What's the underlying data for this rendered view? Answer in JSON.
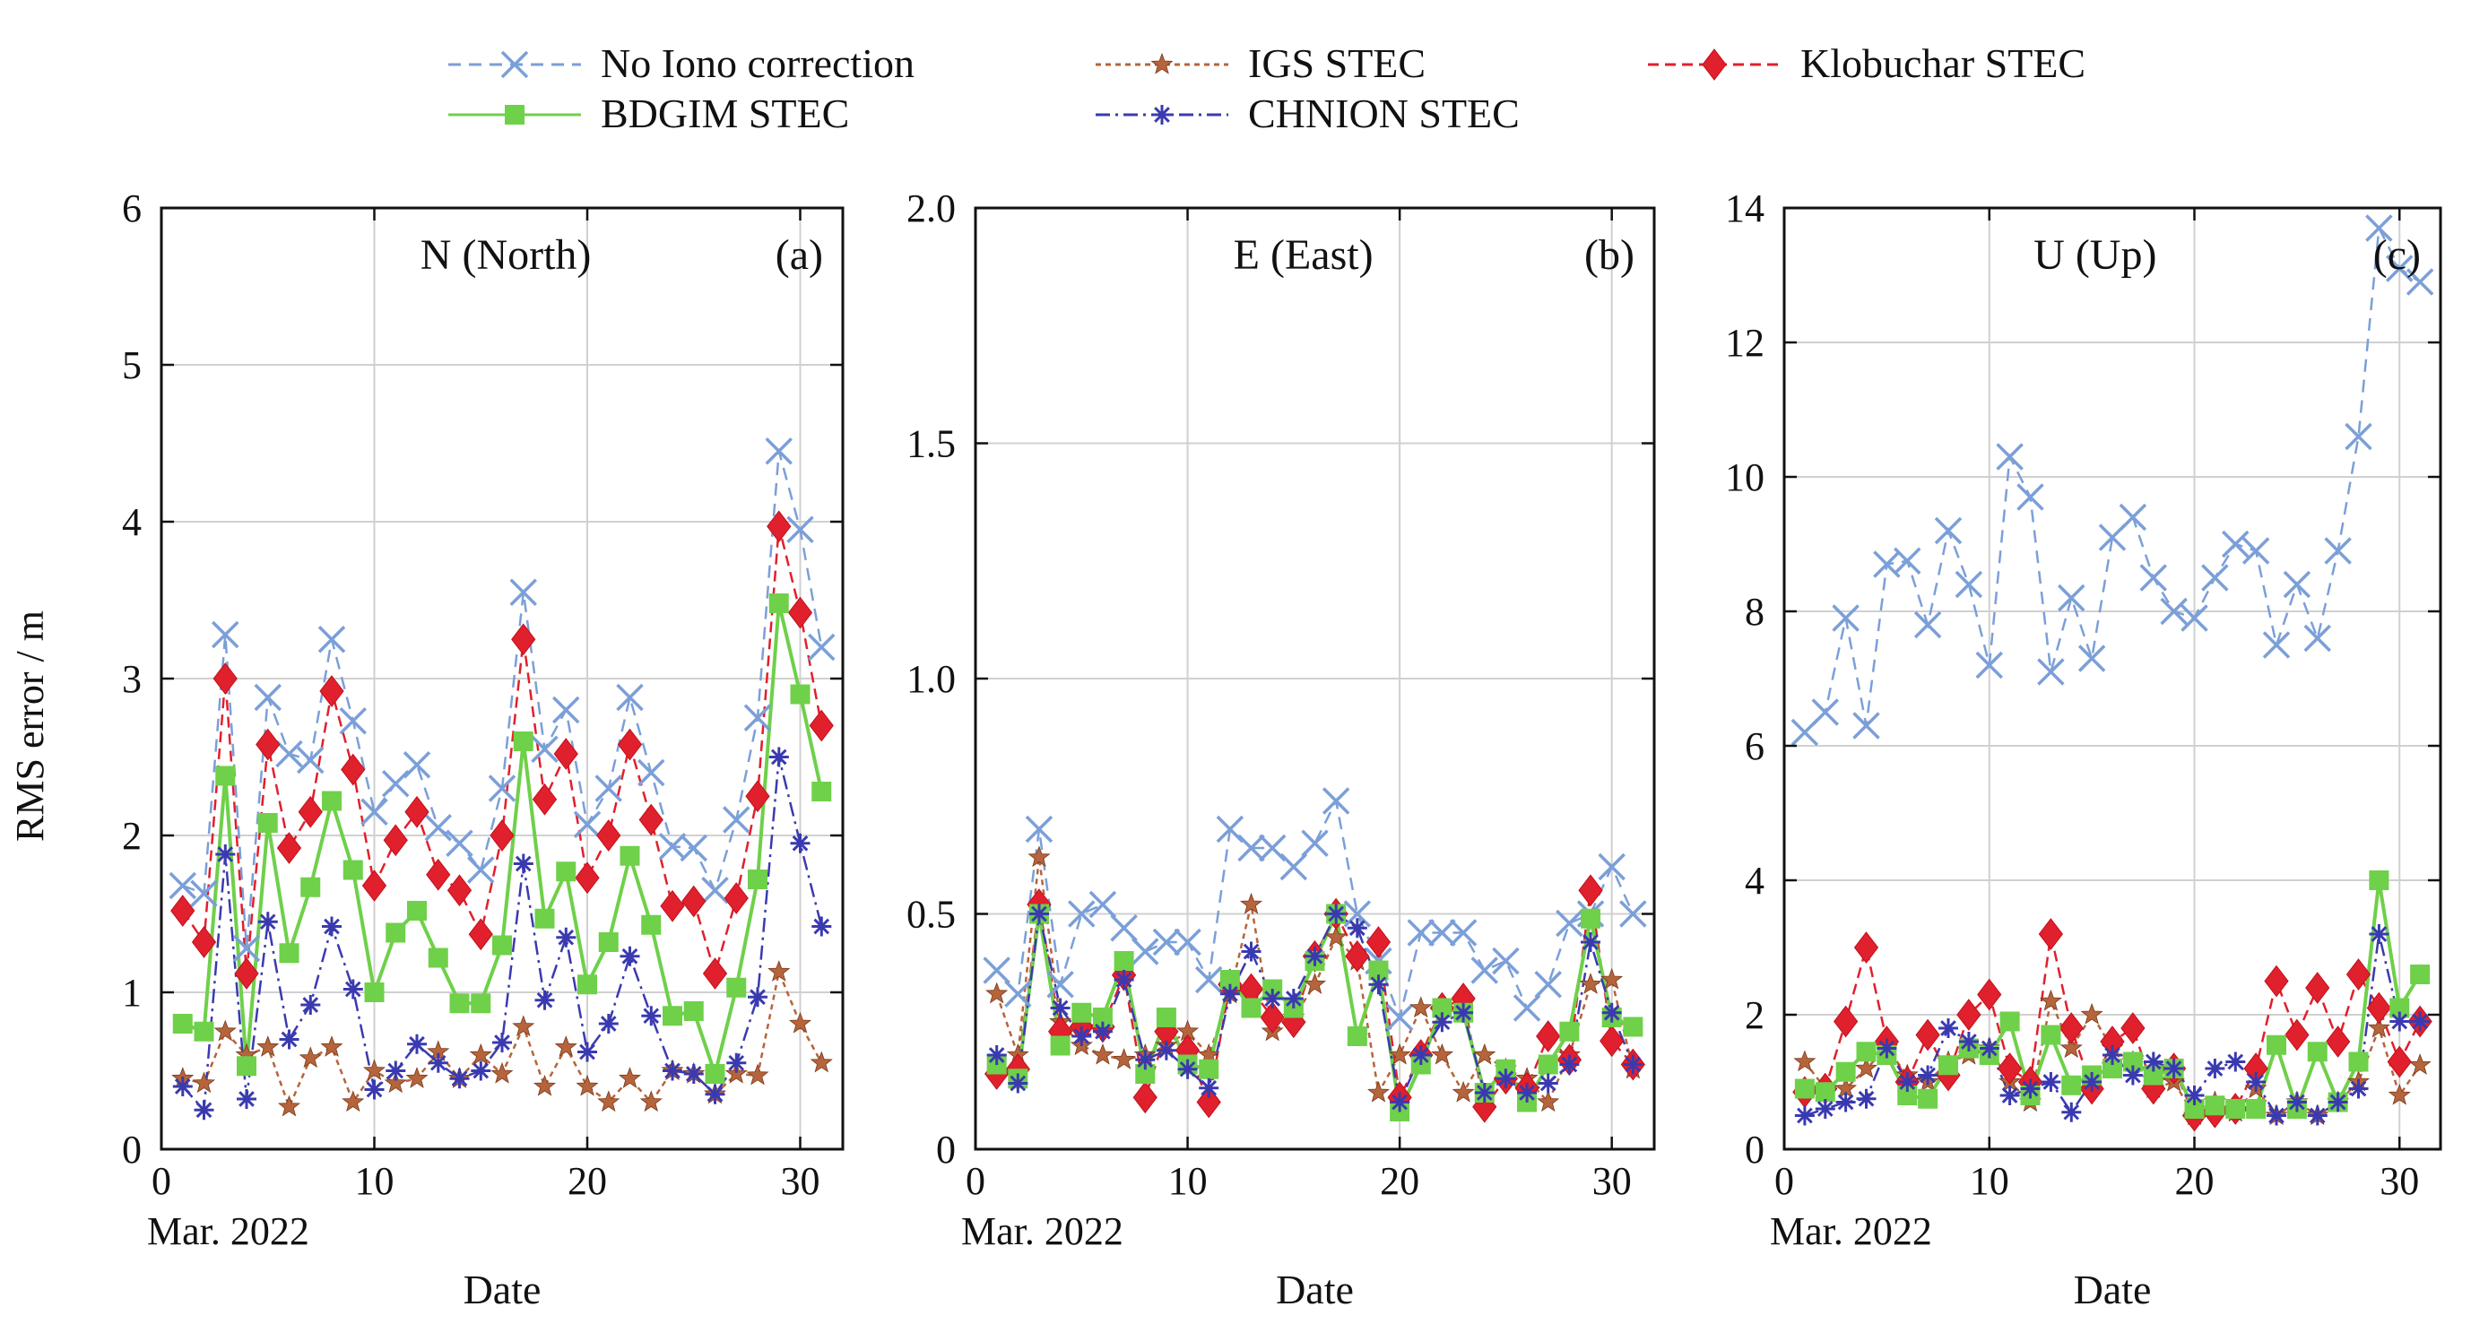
{
  "legend": {
    "items": [
      {
        "key": "noiono",
        "label": "No Iono correction"
      },
      {
        "key": "igs",
        "label": "IGS STEC"
      },
      {
        "key": "klob",
        "label": "Klobuchar STEC"
      },
      {
        "key": "bdgim",
        "label": "BDGIM STEC"
      },
      {
        "key": "chnion",
        "label": "CHNION STEC"
      }
    ]
  },
  "styles": {
    "noiono": {
      "color": "#7b9fd8",
      "marker": "x",
      "dash": "14 9"
    },
    "igs": {
      "color": "#b5643c",
      "marker": "star",
      "dash": "6 5"
    },
    "klob": {
      "color": "#e0202c",
      "marker": "diamond",
      "dash": "12 7"
    },
    "bdgim": {
      "color": "#6fd04a",
      "marker": "square",
      "dash": ""
    },
    "chnion": {
      "color": "#3a3ab0",
      "marker": "asterisk",
      "dash": "16 6 3 6"
    }
  },
  "ylabel": "RMS error / m",
  "chart_data": [
    {
      "type": "line",
      "panel_title": "N (North)",
      "panel_tag": "(a)",
      "xlabel": "Date",
      "x_sublabel": "Mar. 2022",
      "xlim": [
        0,
        32
      ],
      "ylim": [
        0,
        6
      ],
      "xticks": [
        0,
        10,
        20,
        30
      ],
      "yticks": [
        0,
        1,
        2,
        3,
        4,
        5,
        6
      ],
      "ytick_labels": [
        "0",
        "1",
        "2",
        "3",
        "4",
        "5",
        "6"
      ],
      "grid": true,
      "x": [
        1,
        2,
        3,
        4,
        5,
        6,
        7,
        8,
        9,
        10,
        11,
        12,
        13,
        14,
        15,
        16,
        17,
        18,
        19,
        20,
        21,
        22,
        23,
        24,
        25,
        26,
        27,
        28,
        29,
        30,
        31
      ],
      "series": [
        {
          "key": "noiono",
          "name": "No Iono correction",
          "values": [
            1.68,
            1.63,
            3.28,
            1.28,
            2.88,
            2.52,
            2.48,
            3.25,
            2.73,
            2.15,
            2.33,
            2.45,
            2.05,
            1.95,
            1.78,
            2.3,
            3.55,
            2.55,
            2.8,
            2.07,
            2.3,
            2.88,
            2.4,
            1.93,
            1.92,
            1.65,
            2.1,
            2.75,
            4.45,
            3.95,
            3.2
          ]
        },
        {
          "key": "igs",
          "name": "IGS STEC",
          "values": [
            0.45,
            0.42,
            0.75,
            0.6,
            0.65,
            0.27,
            0.58,
            0.65,
            0.3,
            0.5,
            0.42,
            0.45,
            0.62,
            0.45,
            0.6,
            0.48,
            0.78,
            0.4,
            0.65,
            0.4,
            0.3,
            0.45,
            0.3,
            0.5,
            0.48,
            0.35,
            0.48,
            0.47,
            1.13,
            0.8,
            0.55
          ]
        },
        {
          "key": "klob",
          "name": "Klobuchar STEC",
          "values": [
            1.52,
            1.32,
            3.0,
            1.12,
            2.58,
            1.92,
            2.15,
            2.92,
            2.42,
            1.68,
            1.97,
            2.15,
            1.75,
            1.65,
            1.37,
            2.0,
            3.25,
            2.23,
            2.52,
            1.73,
            2.0,
            2.58,
            2.1,
            1.55,
            1.58,
            1.12,
            1.6,
            2.25,
            3.97,
            3.42,
            2.7
          ]
        },
        {
          "key": "bdgim",
          "name": "BDGIM STEC",
          "values": [
            0.8,
            0.75,
            2.38,
            0.53,
            2.08,
            1.25,
            1.67,
            2.22,
            1.78,
            1.0,
            1.38,
            1.52,
            1.22,
            0.93,
            0.93,
            1.3,
            2.6,
            1.47,
            1.77,
            1.05,
            1.32,
            1.87,
            1.43,
            0.85,
            0.88,
            0.48,
            1.03,
            1.72,
            3.48,
            2.9,
            2.28
          ]
        },
        {
          "key": "chnion",
          "name": "CHNION STEC",
          "values": [
            0.4,
            0.25,
            1.88,
            0.32,
            1.45,
            0.7,
            0.92,
            1.42,
            1.02,
            0.38,
            0.5,
            0.67,
            0.55,
            0.45,
            0.5,
            0.68,
            1.82,
            0.95,
            1.35,
            0.62,
            0.8,
            1.23,
            0.85,
            0.5,
            0.48,
            0.35,
            0.55,
            0.97,
            2.5,
            1.95,
            1.42
          ]
        }
      ]
    },
    {
      "type": "line",
      "panel_title": "E (East)",
      "panel_tag": "(b)",
      "xlabel": "Date",
      "x_sublabel": "Mar. 2022",
      "xlim": [
        0,
        32
      ],
      "ylim": [
        0,
        2
      ],
      "xticks": [
        0,
        10,
        20,
        30
      ],
      "yticks": [
        0,
        0.5,
        1.0,
        1.5,
        2.0
      ],
      "ytick_labels": [
        "0",
        "0.5",
        "1.0",
        "1.5",
        "2.0"
      ],
      "grid": true,
      "x": [
        1,
        2,
        3,
        4,
        5,
        6,
        7,
        8,
        9,
        10,
        11,
        12,
        13,
        14,
        15,
        16,
        17,
        18,
        19,
        20,
        21,
        22,
        23,
        24,
        25,
        26,
        27,
        28,
        29,
        30,
        31
      ],
      "series": [
        {
          "key": "noiono",
          "name": "No Iono correction",
          "values": [
            0.38,
            0.33,
            0.68,
            0.35,
            0.5,
            0.52,
            0.47,
            0.42,
            0.44,
            0.44,
            0.36,
            0.68,
            0.64,
            0.64,
            0.6,
            0.65,
            0.74,
            0.5,
            0.4,
            0.28,
            0.46,
            0.46,
            0.46,
            0.38,
            0.4,
            0.3,
            0.35,
            0.48,
            0.5,
            0.6,
            0.5
          ]
        },
        {
          "key": "igs",
          "name": "IGS STEC",
          "values": [
            0.33,
            0.2,
            0.62,
            0.27,
            0.22,
            0.2,
            0.19,
            0.2,
            0.22,
            0.25,
            0.2,
            0.33,
            0.52,
            0.25,
            0.28,
            0.35,
            0.45,
            0.4,
            0.12,
            0.2,
            0.3,
            0.2,
            0.12,
            0.2,
            0.17,
            0.15,
            0.1,
            0.2,
            0.35,
            0.36,
            0.17
          ]
        },
        {
          "key": "klob",
          "name": "Klobuchar STEC",
          "values": [
            0.16,
            0.17,
            0.52,
            0.25,
            0.26,
            0.26,
            0.37,
            0.11,
            0.25,
            0.21,
            0.1,
            0.35,
            0.34,
            0.28,
            0.27,
            0.41,
            0.5,
            0.41,
            0.44,
            0.11,
            0.2,
            0.3,
            0.32,
            0.09,
            0.15,
            0.13,
            0.24,
            0.19,
            0.55,
            0.23,
            0.18
          ]
        },
        {
          "key": "bdgim",
          "name": "BDGIM STEC",
          "values": [
            0.18,
            0.15,
            0.5,
            0.22,
            0.29,
            0.28,
            0.4,
            0.16,
            0.28,
            0.18,
            0.17,
            0.36,
            0.3,
            0.34,
            0.3,
            0.4,
            0.5,
            0.24,
            0.38,
            0.08,
            0.18,
            0.3,
            0.29,
            0.12,
            0.17,
            0.1,
            0.18,
            0.25,
            0.49,
            0.28,
            0.26
          ]
        },
        {
          "key": "chnion",
          "name": "CHNION STEC",
          "values": [
            0.2,
            0.14,
            0.5,
            0.3,
            0.24,
            0.25,
            0.36,
            0.19,
            0.21,
            0.17,
            0.13,
            0.33,
            0.42,
            0.32,
            0.32,
            0.41,
            0.5,
            0.47,
            0.35,
            0.1,
            0.2,
            0.27,
            0.29,
            0.12,
            0.15,
            0.12,
            0.14,
            0.18,
            0.44,
            0.29,
            0.18
          ]
        }
      ]
    },
    {
      "type": "line",
      "panel_title": "U (Up)",
      "panel_tag": "(c)",
      "xlabel": "Date",
      "x_sublabel": "Mar. 2022",
      "xlim": [
        0,
        32
      ],
      "ylim": [
        0,
        14
      ],
      "xticks": [
        0,
        10,
        20,
        30
      ],
      "yticks": [
        0,
        2,
        4,
        6,
        8,
        10,
        12,
        14
      ],
      "ytick_labels": [
        "0",
        "2",
        "4",
        "6",
        "8",
        "10",
        "12",
        "14"
      ],
      "grid": true,
      "x": [
        1,
        2,
        3,
        4,
        5,
        6,
        7,
        8,
        9,
        10,
        11,
        12,
        13,
        14,
        15,
        16,
        17,
        18,
        19,
        20,
        21,
        22,
        23,
        24,
        25,
        26,
        27,
        28,
        29,
        30,
        31
      ],
      "series": [
        {
          "key": "noiono",
          "name": "No Iono correction",
          "values": [
            6.2,
            6.5,
            7.9,
            6.3,
            8.7,
            8.75,
            7.8,
            9.2,
            8.4,
            7.2,
            10.3,
            9.7,
            7.1,
            8.2,
            7.3,
            9.1,
            9.4,
            8.5,
            8.0,
            7.9,
            8.5,
            9.0,
            8.9,
            7.5,
            8.4,
            7.6,
            8.9,
            10.6,
            13.7,
            13.1,
            12.9
          ]
        },
        {
          "key": "igs",
          "name": "IGS STEC",
          "values": [
            1.3,
            0.9,
            0.9,
            1.2,
            1.5,
            1.1,
            1.0,
            1.3,
            1.4,
            1.5,
            1.0,
            0.7,
            2.2,
            1.5,
            2.0,
            1.5,
            1.3,
            0.9,
            1.0,
            0.5,
            0.7,
            0.55,
            0.9,
            0.5,
            0.7,
            0.5,
            0.7,
            1.0,
            1.8,
            0.8,
            1.25
          ]
        },
        {
          "key": "klob",
          "name": "Klobuchar STEC",
          "values": [
            0.85,
            0.9,
            1.9,
            3.0,
            1.6,
            1.0,
            1.7,
            1.1,
            2.0,
            2.3,
            1.2,
            1.0,
            3.2,
            1.8,
            0.9,
            1.6,
            1.8,
            0.9,
            1.2,
            0.5,
            0.55,
            0.6,
            1.2,
            2.5,
            1.7,
            2.4,
            1.6,
            2.6,
            2.1,
            1.3,
            1.9
          ]
        },
        {
          "key": "bdgim",
          "name": "BDGIM STEC",
          "values": [
            0.9,
            0.85,
            1.15,
            1.45,
            1.4,
            0.8,
            0.75,
            1.25,
            1.5,
            1.4,
            1.9,
            0.8,
            1.7,
            0.95,
            1.1,
            1.2,
            1.3,
            1.1,
            1.2,
            0.6,
            0.65,
            0.6,
            0.6,
            1.55,
            0.6,
            1.45,
            0.7,
            1.3,
            4.0,
            2.1,
            2.6
          ]
        },
        {
          "key": "chnion",
          "name": "CHNION STEC",
          "values": [
            0.5,
            0.6,
            0.7,
            0.75,
            1.5,
            1.0,
            1.1,
            1.8,
            1.6,
            1.5,
            0.8,
            0.9,
            1.0,
            0.55,
            1.0,
            1.4,
            1.1,
            1.3,
            1.2,
            0.8,
            1.2,
            1.3,
            1.0,
            0.5,
            0.7,
            0.5,
            0.7,
            0.9,
            3.2,
            1.9,
            1.9
          ]
        }
      ]
    }
  ]
}
